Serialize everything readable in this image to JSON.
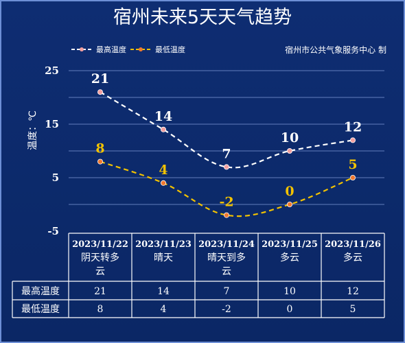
{
  "chart_data": {
    "type": "line",
    "title": "宿州未来5天天气趋势",
    "source": "宿州市公共气象服务中心 制",
    "ylabel": "温度：℃",
    "ylim": [
      -5,
      25
    ],
    "yticks": [
      25,
      15,
      5,
      -5
    ],
    "grid": true,
    "legend_position": "top-left",
    "categories": [
      {
        "date": "2023/11/22",
        "weather": "阴天转多云"
      },
      {
        "date": "2023/11/23",
        "weather": "晴天"
      },
      {
        "date": "2023/11/24",
        "weather": "晴天到多云"
      },
      {
        "date": "2023/11/25",
        "weather": "多云"
      },
      {
        "date": "2023/11/26",
        "weather": "多云"
      }
    ],
    "series": [
      {
        "name": "最高温度",
        "values": [
          21,
          14,
          7,
          10,
          12
        ],
        "color": "#ffffff",
        "marker": "#f3a0a0"
      },
      {
        "name": "最低温度",
        "values": [
          8,
          4,
          -2,
          0,
          5
        ],
        "color": "#f2c200",
        "marker": "#f07830"
      }
    ],
    "colors": {
      "background": "#0d2a6b",
      "grid": "#7f9bd8",
      "table_line": "#ffffff"
    }
  }
}
